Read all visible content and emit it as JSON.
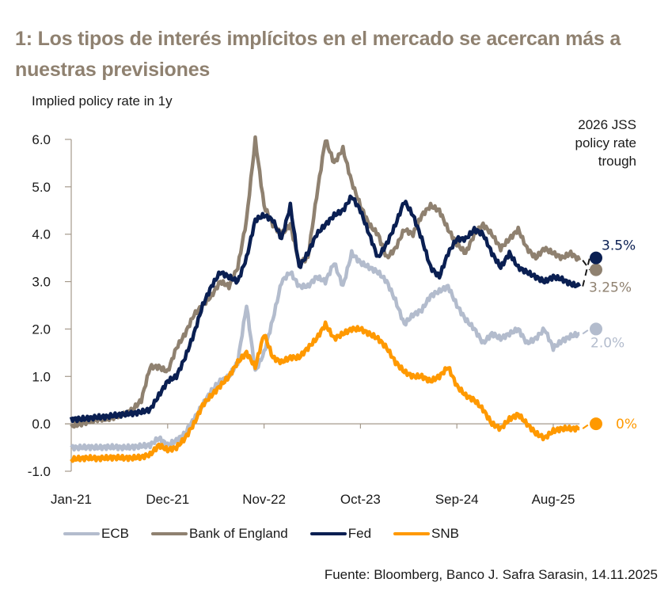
{
  "title": "1: Los tipos de interés implícitos en el mercado se acercan más a nuestras previsiones",
  "source": "Fuente: Bloomberg, Banco J. Safra Sarasin, 14.11.2025",
  "chart_data": {
    "type": "line",
    "title": "1: Los tipos de interés implícitos en el mercado se acercan más a nuestras previsiones",
    "ylabel": "Implied policy rate in 1y",
    "xlabel": "",
    "ylim": [
      -1.0,
      6.0
    ],
    "yticks": [
      "6.0",
      "5.0",
      "4.0",
      "3.0",
      "2.0",
      "1.0",
      "0.0",
      "-1.0"
    ],
    "ytick_values": [
      6,
      5,
      4,
      3,
      2,
      1,
      0,
      -1
    ],
    "xticks": [
      "Jan-21",
      "Dec-21",
      "Nov-22",
      "Oct-23",
      "Sep-24",
      "Aug-25"
    ],
    "xtick_month_index": [
      0,
      11,
      22,
      33,
      44,
      55
    ],
    "x_start": "Jan-21",
    "x_end": "Nov-25",
    "grid": false,
    "legend_position": "bottom",
    "annotation": "2026 JSS policy rate trough",
    "series": [
      {
        "name": "ECB",
        "color": "#b3bccd",
        "values": [
          -0.5,
          -0.5,
          -0.49,
          -0.5,
          -0.49,
          -0.49,
          -0.5,
          -0.49,
          -0.47,
          -0.45,
          -0.3,
          -0.45,
          -0.35,
          -0.2,
          0.1,
          0.4,
          0.7,
          0.9,
          1.0,
          1.3,
          2.5,
          1.1,
          1.5,
          2.2,
          3.0,
          3.2,
          2.9,
          2.9,
          3.1,
          3.0,
          3.4,
          2.9,
          3.6,
          3.4,
          3.3,
          3.2,
          3.0,
          2.6,
          2.1,
          2.3,
          2.4,
          2.7,
          2.8,
          2.9,
          2.5,
          2.2,
          2.0,
          1.7,
          1.9,
          1.8,
          1.9,
          2.0,
          1.7,
          1.8,
          2.0,
          1.6,
          1.75,
          1.85,
          1.9
        ],
        "forecast": 2.0,
        "forecast_label": "2.0%"
      },
      {
        "name": "Bank of England",
        "color": "#8f8170",
        "values": [
          -0.05,
          0.0,
          0.05,
          0.1,
          0.1,
          0.15,
          0.2,
          0.3,
          0.5,
          1.2,
          1.2,
          1.1,
          1.6,
          1.9,
          2.3,
          2.5,
          2.7,
          3.0,
          2.9,
          3.3,
          4.3,
          6.0,
          4.6,
          4.2,
          4.0,
          4.2,
          3.4,
          3.5,
          4.8,
          6.0,
          5.5,
          5.8,
          5.1,
          4.6,
          4.2,
          4.0,
          3.5,
          3.7,
          4.1,
          4.0,
          4.4,
          4.6,
          4.5,
          4.1,
          3.8,
          3.6,
          4.0,
          4.2,
          4.0,
          3.7,
          3.9,
          4.1,
          3.7,
          3.5,
          3.7,
          3.6,
          3.5,
          3.6,
          3.45
        ],
        "forecast": 3.25,
        "forecast_label": "3.25%"
      },
      {
        "name": "Fed",
        "color": "#0a1f52",
        "values": [
          0.1,
          0.1,
          0.12,
          0.14,
          0.15,
          0.18,
          0.2,
          0.22,
          0.25,
          0.3,
          0.6,
          0.9,
          1.0,
          1.4,
          1.9,
          2.5,
          2.9,
          3.2,
          3.1,
          3.0,
          3.5,
          4.3,
          4.4,
          4.3,
          3.9,
          4.6,
          3.3,
          3.6,
          4.0,
          4.2,
          4.4,
          4.5,
          4.8,
          4.5,
          4.0,
          3.5,
          3.8,
          4.2,
          4.7,
          4.4,
          3.9,
          3.3,
          3.1,
          3.6,
          3.9,
          3.9,
          4.1,
          4.0,
          3.6,
          3.3,
          3.6,
          3.3,
          3.2,
          3.1,
          3.0,
          3.1,
          3.05,
          2.95,
          2.9
        ],
        "forecast": 3.5,
        "forecast_label": "3.5%"
      },
      {
        "name": "SNB",
        "color": "#ff9900",
        "values": [
          -0.75,
          -0.73,
          -0.72,
          -0.73,
          -0.72,
          -0.71,
          -0.72,
          -0.72,
          -0.7,
          -0.65,
          -0.45,
          -0.55,
          -0.5,
          -0.3,
          0.0,
          0.4,
          0.6,
          0.8,
          1.0,
          1.3,
          1.5,
          1.2,
          1.9,
          1.4,
          1.3,
          1.4,
          1.4,
          1.6,
          1.8,
          2.1,
          1.8,
          1.9,
          2.0,
          2.0,
          1.9,
          1.8,
          1.6,
          1.3,
          1.1,
          1.0,
          1.0,
          0.9,
          1.0,
          1.2,
          0.8,
          0.6,
          0.5,
          0.3,
          0.0,
          -0.1,
          0.1,
          0.2,
          0.0,
          -0.2,
          -0.3,
          -0.15,
          -0.1,
          -0.1,
          -0.1
        ],
        "forecast": 0.0,
        "forecast_label": "0%"
      }
    ]
  }
}
